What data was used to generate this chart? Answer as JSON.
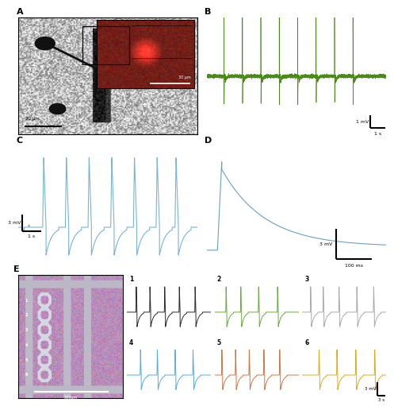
{
  "panel_labels": [
    "A",
    "B",
    "C",
    "D",
    "E"
  ],
  "panel_label_fontsize": 8,
  "bg_color": "#ffffff",
  "panel_B": {
    "color": "#4a8a1a",
    "noise_amplitude": 0.06,
    "spike_height": 7.0,
    "spike_positions": [
      0.75,
      1.55,
      2.35,
      3.15,
      3.95,
      4.75,
      5.55,
      6.35
    ],
    "scale_bar_v": "1 mV",
    "scale_bar_h": "1 s",
    "ylim": [
      -4.5,
      4.5
    ],
    "xlim": [
      0,
      7.8
    ]
  },
  "panel_C": {
    "color": "#7ab4d4",
    "scale_bar_v": "3 mV",
    "scale_bar_h": "1 s",
    "spike_positions": [
      1.3,
      2.5,
      3.7,
      4.9,
      6.1,
      7.3,
      8.3
    ],
    "ylim": [
      -8,
      13
    ],
    "xlim": [
      0,
      9.5
    ]
  },
  "panel_D": {
    "color": "#6a9fc4",
    "scale_bar_v": "3 mV",
    "scale_bar_h": "100 ms",
    "ylim": [
      -2.5,
      9
    ],
    "xlim": [
      0,
      500
    ]
  },
  "panel_E": {
    "sub_colors": [
      "#2a2a2a",
      "#6aaa40",
      "#aaaaaa",
      "#4aaard4",
      "#cc7744",
      "#ddaa20"
    ],
    "sub_colors_fixed": [
      "#2a2a2a",
      "#6aaa40",
      "#aaaaaa",
      "#5aaadd",
      "#cc7744",
      "#ddaa20"
    ],
    "sub_labels": [
      "1",
      "2",
      "3",
      "4",
      "5",
      "6"
    ],
    "scale_bar_v": "3 mV",
    "scale_bar_h": "3 s"
  }
}
